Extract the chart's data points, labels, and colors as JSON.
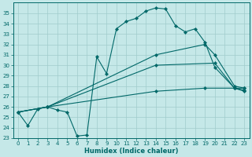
{
  "xlabel": "Humidex (Indice chaleur)",
  "bg_color": "#c5e8e8",
  "grid_color": "#a0cccc",
  "line_color": "#006868",
  "xlim": [
    -0.5,
    23.5
  ],
  "ylim": [
    23,
    36
  ],
  "yticks": [
    23,
    24,
    25,
    26,
    27,
    28,
    29,
    30,
    31,
    32,
    33,
    34,
    35
  ],
  "xticks": [
    0,
    1,
    2,
    3,
    4,
    5,
    6,
    7,
    8,
    9,
    10,
    11,
    12,
    13,
    14,
    15,
    16,
    17,
    18,
    19,
    20,
    21,
    22,
    23
  ],
  "lines": [
    {
      "x": [
        0,
        1,
        2,
        3,
        4,
        5,
        6,
        7,
        8,
        9,
        10,
        11,
        12,
        13,
        14,
        15,
        16,
        17,
        18,
        19,
        20,
        22,
        23
      ],
      "y": [
        25.5,
        24.2,
        25.8,
        26.0,
        25.7,
        25.5,
        23.2,
        23.3,
        30.8,
        29.2,
        33.5,
        34.2,
        34.5,
        35.2,
        35.5,
        35.4,
        33.8,
        33.2,
        33.5,
        32.2,
        29.8,
        27.8,
        27.8
      ]
    },
    {
      "x": [
        0,
        3,
        14,
        19,
        20,
        22,
        23
      ],
      "y": [
        25.5,
        26.0,
        31.0,
        32.0,
        31.0,
        28.0,
        27.8
      ]
    },
    {
      "x": [
        0,
        3,
        14,
        20,
        22,
        23
      ],
      "y": [
        25.5,
        26.0,
        30.0,
        30.2,
        27.8,
        27.6
      ]
    },
    {
      "x": [
        0,
        3,
        14,
        19,
        22,
        23
      ],
      "y": [
        25.5,
        26.0,
        27.5,
        27.8,
        27.8,
        27.5
      ]
    }
  ]
}
